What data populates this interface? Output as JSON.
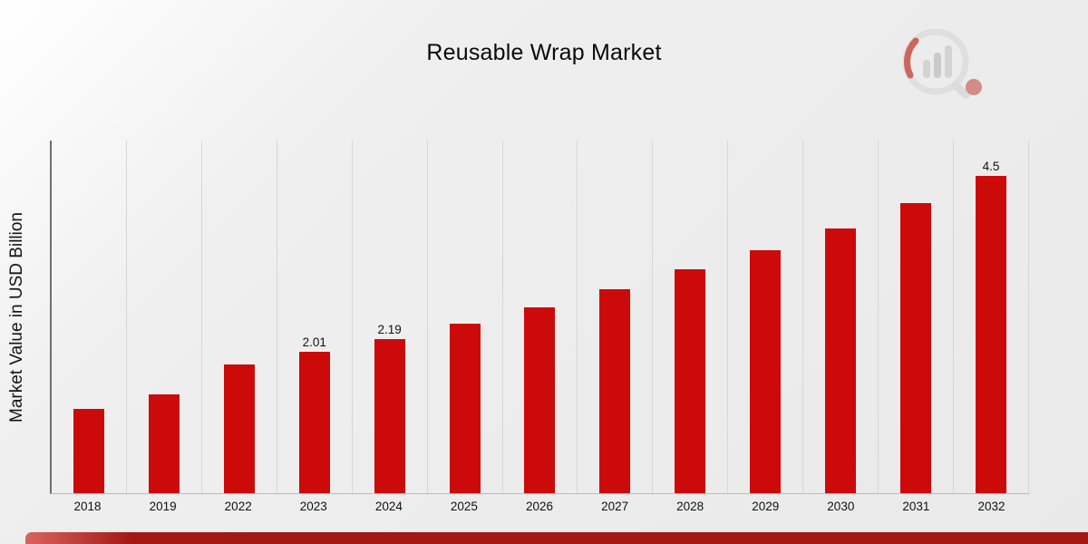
{
  "page": {
    "title": "Reusable Wrap Market"
  },
  "chart_data": {
    "type": "bar",
    "title": "Reusable Wrap Market",
    "xlabel": "",
    "ylabel": "Market Value in USD Billion",
    "categories": [
      "2018",
      "2019",
      "2022",
      "2023",
      "2024",
      "2025",
      "2026",
      "2027",
      "2028",
      "2029",
      "2030",
      "2031",
      "2032"
    ],
    "values": [
      1.2,
      1.4,
      1.83,
      2.01,
      2.19,
      2.41,
      2.63,
      2.89,
      3.17,
      3.45,
      3.75,
      4.11,
      4.5
    ],
    "bar_labels": [
      "",
      "",
      "",
      "2.01",
      "2.19",
      "",
      "",
      "",
      "",
      "",
      "",
      "",
      "4.5"
    ],
    "bar_color": "#cc0a0a",
    "ylim": [
      0,
      5
    ],
    "grid": "vertical",
    "legend": "none"
  },
  "footer": {
    "accent_color": "#a31715"
  }
}
